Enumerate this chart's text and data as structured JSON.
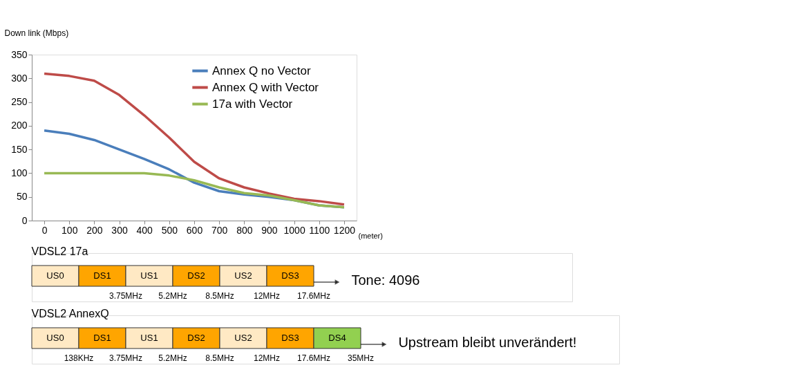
{
  "chart_data": [
    {
      "type": "line",
      "ylabel": "Down link (Mbps)",
      "xlabel": "(meter)",
      "x": [
        0,
        100,
        200,
        300,
        400,
        500,
        600,
        700,
        800,
        900,
        1000,
        1100,
        1200
      ],
      "xlim": [
        -50,
        1250
      ],
      "xticks": [
        0,
        100,
        200,
        300,
        400,
        500,
        600,
        700,
        800,
        900,
        1000,
        1100,
        1200
      ],
      "ylim": [
        0,
        350
      ],
      "yticks": [
        0,
        50,
        100,
        150,
        200,
        250,
        300,
        350
      ],
      "grid": false,
      "legend": "top right",
      "marker": "none",
      "line_style": "solid",
      "series": [
        {
          "name": "Annex Q no Vector",
          "color": "#4a7ebb",
          "values": [
            190,
            183,
            170,
            150,
            130,
            108,
            80,
            62,
            55,
            50,
            43,
            32,
            28
          ]
        },
        {
          "name": "Annex Q with Vector",
          "color": "#be4b48",
          "values": [
            310,
            305,
            295,
            265,
            222,
            175,
            124,
            89,
            70,
            57,
            46,
            41,
            34
          ]
        },
        {
          "name": "17a with Vector",
          "color": "#98b954",
          "values": [
            100,
            100,
            100,
            100,
            100,
            95,
            85,
            70,
            58,
            53,
            43,
            32,
            28
          ]
        }
      ]
    },
    {
      "type": "other",
      "title": "VDSL2 17a",
      "categories": [
        "US0",
        "DS1",
        "US1",
        "DS2",
        "US2",
        "DS3"
      ],
      "colors": [
        "#ffe9c4",
        "#ffa500",
        "#ffe9c4",
        "#ffa500",
        "#ffe9c4",
        "#ffa500"
      ],
      "annotations": [
        {
          "text": "3.75MHz",
          "x": "DS1"
        },
        {
          "text": "5.2MHz",
          "x": "US1"
        },
        {
          "text": "8.5MHz",
          "x": "DS2"
        },
        {
          "text": "12MHz",
          "x": "US2"
        },
        {
          "text": "17.6MHz",
          "x": "DS3"
        },
        "Tone: 4096"
      ]
    },
    {
      "type": "other",
      "title": "VDSL2 AnnexQ",
      "categories": [
        "US0",
        "DS1",
        "US1",
        "DS2",
        "US2",
        "DS3",
        "DS4"
      ],
      "colors": [
        "#ffe9c4",
        "#ffa500",
        "#ffe9c4",
        "#ffa500",
        "#ffe9c4",
        "#ffa500",
        "#92d050"
      ],
      "annotations": [
        {
          "text": "138KHz",
          "x": "US0"
        },
        {
          "text": "3.75MHz",
          "x": "DS1"
        },
        {
          "text": "5.2MHz",
          "x": "US1"
        },
        {
          "text": "8.5MHz",
          "x": "DS2"
        },
        {
          "text": "12MHz",
          "x": "US2"
        },
        {
          "text": "17.6MHz",
          "x": "DS3"
        },
        {
          "text": "35MHz",
          "x": "DS4"
        },
        "Upstream bleibt unverändert!"
      ]
    }
  ]
}
